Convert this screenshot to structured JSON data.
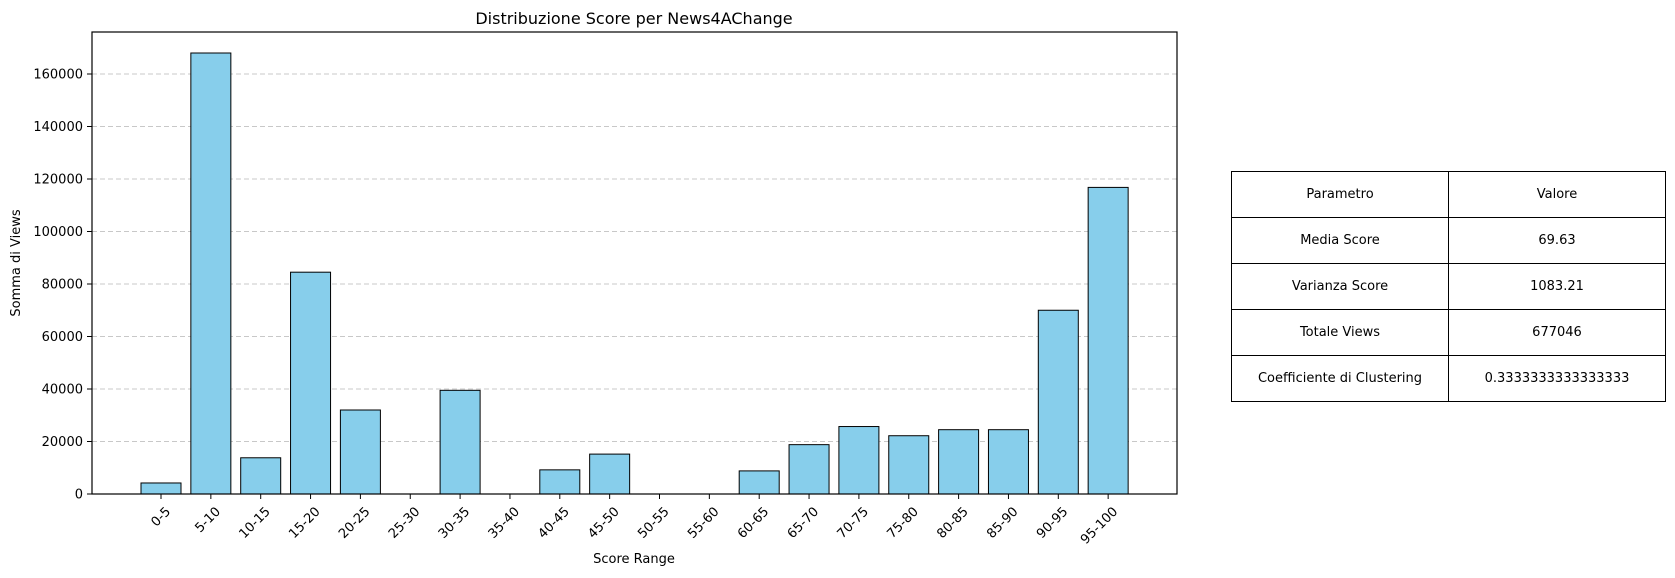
{
  "chart_data": {
    "type": "bar",
    "title": "Distribuzione Score per News4AChange",
    "xlabel": "Score Range",
    "ylabel": "Somma di Views",
    "categories": [
      "0-5",
      "5-10",
      "10-15",
      "15-20",
      "20-25",
      "25-30",
      "30-35",
      "35-40",
      "40-45",
      "45-50",
      "50-55",
      "55-60",
      "60-65",
      "65-70",
      "70-75",
      "75-80",
      "80-85",
      "85-90",
      "90-95",
      "95-100"
    ],
    "values": [
      4200,
      168000,
      13800,
      84500,
      32000,
      0,
      39500,
      0,
      9200,
      15200,
      0,
      0,
      8800,
      18800,
      25700,
      22200,
      24500,
      24500,
      70000,
      116800
    ],
    "ylim": [
      0,
      176000
    ],
    "yticks": [
      0,
      20000,
      40000,
      60000,
      80000,
      100000,
      120000,
      140000,
      160000
    ],
    "grid": "horizontal dashed",
    "colors": {
      "bar_fill": "#87ceeb",
      "bar_edge": "#000000",
      "grid": "#c8c8c8"
    }
  },
  "table": {
    "header": [
      "Parametro",
      "Valore"
    ],
    "rows": [
      [
        "Media Score",
        "69.63"
      ],
      [
        "Varianza Score",
        "1083.21"
      ],
      [
        "Totale Views",
        "677046"
      ],
      [
        "Coefficiente di Clustering",
        "0.3333333333333333"
      ]
    ]
  }
}
